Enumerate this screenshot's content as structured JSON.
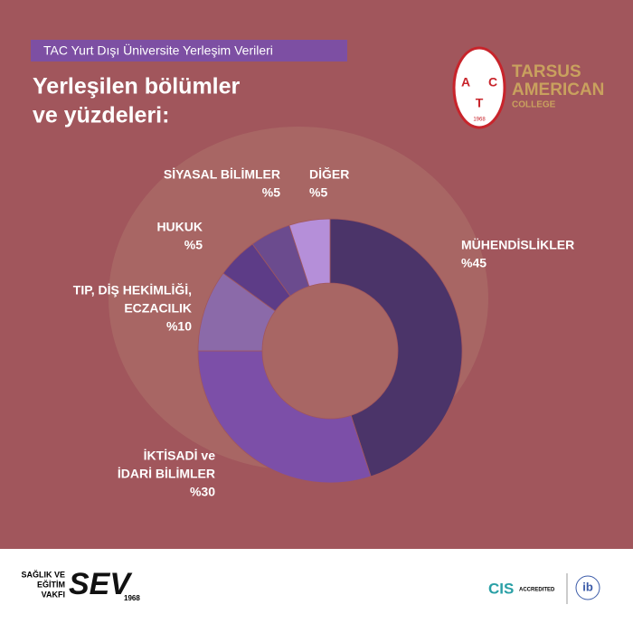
{
  "chart_data": {
    "type": "donut",
    "subtitle": "TAC Yurt Dışı Üniversite Yerleşim Verileri",
    "title": [
      "Yerleşilen bölümler",
      "ve yüzdeleri:"
    ],
    "categories": [
      [
        "MÜHENDİSLİKLER"
      ],
      [
        "İKTİSADİ ve",
        "İDARİ BİLİMLER"
      ],
      [
        "TIP, DİŞ HEKİMLİĞİ,",
        "ECZACILIK"
      ],
      [
        "HUKUK"
      ],
      [
        "SİYASAL BİLİMLER"
      ],
      [
        "DİĞER"
      ]
    ],
    "values": [
      45,
      30,
      10,
      5,
      5,
      5
    ],
    "value_labels": [
      "%45",
      "%30",
      "%10",
      "%5",
      "%5",
      "%5"
    ],
    "colors": [
      "#4b3469",
      "#7c4fa8",
      "#8b6aa9",
      "#5d3c87",
      "#6b4b8e",
      "#b58fd9"
    ]
  },
  "branding": {
    "school": [
      "TARSUS",
      "AMERICAN",
      "COLLEGE"
    ],
    "monogram": [
      "A",
      "C",
      "T"
    ],
    "year": "1968",
    "foundation": [
      "SAĞLIK VE",
      "EĞİTİM",
      "VAKFI"
    ],
    "sev": "SEV",
    "sev_year": "1968",
    "cis": "CIS",
    "accredited": "ACCREDITED",
    "ib": "ib"
  }
}
